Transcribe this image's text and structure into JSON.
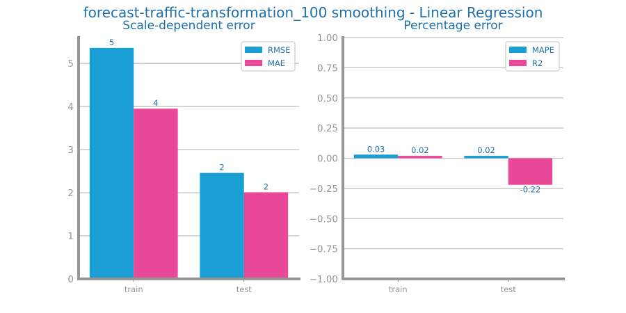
{
  "figure": {
    "title": "forecast-traffic-transformation_100 smoothing - Linear Regression"
  },
  "colors": {
    "series_1": "#1a9fd5",
    "series_2": "#ea4899",
    "title": "#1f6faa",
    "axis": "#969696",
    "grid": "#c8c8c8",
    "tick_label": "#969696",
    "data_label": "#1f6faa"
  },
  "chart_data": [
    {
      "type": "bar",
      "title": "Scale-dependent error",
      "categories": [
        "train",
        "test"
      ],
      "series": [
        {
          "name": "RMSE",
          "values": [
            5.36,
            2.46
          ],
          "labels": [
            "5",
            "2"
          ]
        },
        {
          "name": "MAE",
          "values": [
            3.95,
            2.01
          ],
          "labels": [
            "4",
            "2"
          ]
        }
      ],
      "ylim": [
        0,
        5.6
      ],
      "yticks": [
        0,
        1,
        2,
        3,
        4,
        5
      ],
      "ytick_labels": [
        "0",
        "1",
        "2",
        "3",
        "4",
        "5"
      ],
      "grid": true,
      "legend": "top-right"
    },
    {
      "type": "bar",
      "title": "Percentage error",
      "categories": [
        "train",
        "test"
      ],
      "series": [
        {
          "name": "MAPE",
          "values": [
            0.03,
            0.02
          ],
          "labels": [
            "0.03",
            "0.02"
          ]
        },
        {
          "name": "R2",
          "values": [
            0.02,
            -0.22
          ],
          "labels": [
            "0.02",
            "-0.22"
          ]
        }
      ],
      "ylim": [
        -1.0,
        1.0
      ],
      "yticks": [
        -1.0,
        -0.75,
        -0.5,
        -0.25,
        0.0,
        0.25,
        0.5,
        0.75,
        1.0
      ],
      "ytick_labels": [
        "−1.00",
        "−0.75",
        "−0.50",
        "−0.25",
        "0.00",
        "0.25",
        "0.50",
        "0.75",
        "1.00"
      ],
      "grid": true,
      "legend": "top-right"
    }
  ]
}
